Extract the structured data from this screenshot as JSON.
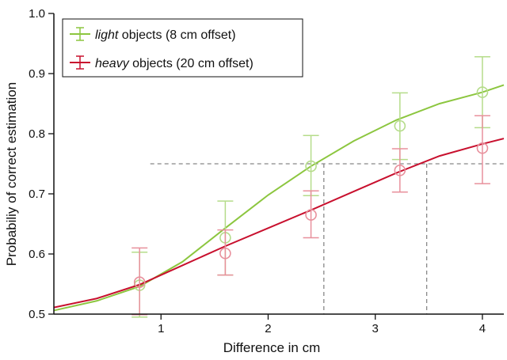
{
  "chart_data": {
    "type": "line",
    "xlabel": "Difference in cm",
    "ylabel": "Probabiliy of correct estimation",
    "xlim": [
      0,
      4.2
    ],
    "ylim": [
      0.5,
      1.0
    ],
    "x_ticks": [
      1,
      2,
      3,
      4
    ],
    "y_ticks": [
      0.5,
      0.6,
      0.7,
      0.8,
      0.9,
      1.0
    ],
    "x_tick_labels": [
      "1",
      "2",
      "3",
      "4"
    ],
    "y_tick_labels": [
      "0.5",
      "0.6",
      "0.7",
      "0.8",
      "0.9",
      "1.0"
    ],
    "grid": false,
    "legend_position": "top-left",
    "threshold": {
      "y": 0.75,
      "style": "dashed",
      "intersections_x": [
        2.52,
        3.48
      ],
      "color": "#888888"
    },
    "series": [
      {
        "name_emph": "light",
        "name_rest": " objects (8 cm offset)",
        "color": "#8cc63f",
        "light_color": "#b5dc8a",
        "points": [
          {
            "x": 0.8,
            "y": 0.548,
            "err_low": 0.495,
            "err_high": 0.603
          },
          {
            "x": 1.6,
            "y": 0.627,
            "err_low": 0.565,
            "err_high": 0.688
          },
          {
            "x": 2.4,
            "y": 0.746,
            "err_low": 0.697,
            "err_high": 0.797
          },
          {
            "x": 3.23,
            "y": 0.813,
            "err_low": 0.757,
            "err_high": 0.868
          },
          {
            "x": 4.0,
            "y": 0.869,
            "err_low": 0.81,
            "err_high": 0.928
          }
        ],
        "fit": {
          "x": [
            0,
            0.4,
            0.8,
            1.2,
            1.6,
            2.0,
            2.4,
            2.8,
            3.2,
            3.6,
            4.0,
            4.2
          ],
          "y": [
            0.506,
            0.522,
            0.546,
            0.587,
            0.643,
            0.698,
            0.746,
            0.788,
            0.823,
            0.85,
            0.869,
            0.881
          ]
        }
      },
      {
        "name_emph": "heavy",
        "name_rest": " objects (20 cm offset)",
        "color": "#c8102e",
        "light_color": "#e8909c",
        "points": [
          {
            "x": 0.8,
            "y": 0.553,
            "err_low": 0.499,
            "err_high": 0.61
          },
          {
            "x": 1.6,
            "y": 0.601,
            "err_low": 0.565,
            "err_high": 0.64
          },
          {
            "x": 2.4,
            "y": 0.665,
            "err_low": 0.627,
            "err_high": 0.705
          },
          {
            "x": 3.23,
            "y": 0.739,
            "err_low": 0.703,
            "err_high": 0.775
          },
          {
            "x": 4.0,
            "y": 0.776,
            "err_low": 0.717,
            "err_high": 0.83
          }
        ],
        "fit": {
          "x": [
            0,
            0.4,
            0.8,
            1.2,
            1.6,
            2.0,
            2.4,
            2.8,
            3.2,
            3.6,
            4.0,
            4.2
          ],
          "y": [
            0.511,
            0.526,
            0.549,
            0.581,
            0.613,
            0.643,
            0.673,
            0.704,
            0.735,
            0.763,
            0.783,
            0.792
          ]
        }
      }
    ]
  }
}
